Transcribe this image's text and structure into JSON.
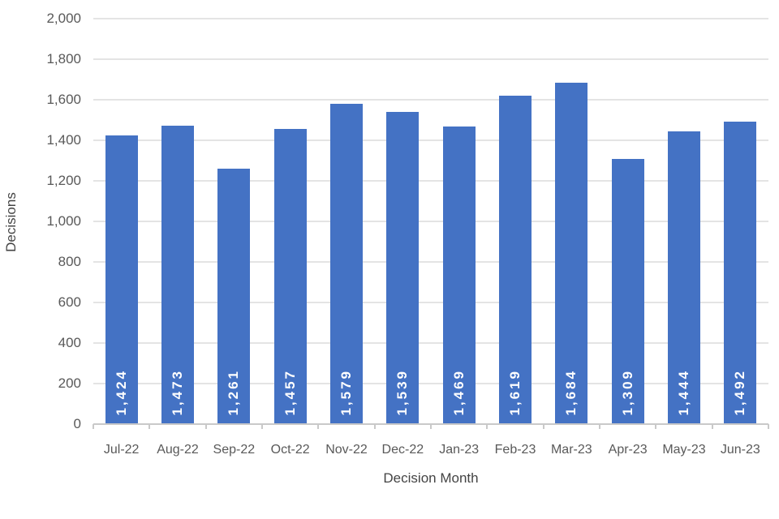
{
  "chart_data": {
    "type": "bar",
    "title": "",
    "xlabel": "Decision Month",
    "ylabel": "Decisions",
    "categories": [
      "Jul-22",
      "Aug-22",
      "Sep-22",
      "Oct-22",
      "Nov-22",
      "Dec-22",
      "Jan-23",
      "Feb-23",
      "Mar-23",
      "Apr-23",
      "May-23",
      "Jun-23"
    ],
    "values": [
      1424,
      1473,
      1261,
      1457,
      1579,
      1539,
      1469,
      1619,
      1684,
      1309,
      1444,
      1492
    ],
    "bar_labels": [
      "1,424",
      "1,473",
      "1,261",
      "1,457",
      "1,579",
      "1,539",
      "1,469",
      "1,619",
      "1,684",
      "1,309",
      "1,444",
      "1,492"
    ],
    "ylim": [
      0,
      2000
    ],
    "ytick_step": 200,
    "yticks": [
      "0",
      "200",
      "400",
      "600",
      "800",
      "1,000",
      "1,200",
      "1,400",
      "1,600",
      "1,800",
      "2,000"
    ],
    "grid": true,
    "legend": "none",
    "bar_color": "#4472c4",
    "bar_label_color": "#ffffff",
    "tick_label_color": "#595959",
    "axis_title_color": "#444444",
    "gridline_color": "#e4e4e4",
    "axis_line_color": "#c9c9c9"
  }
}
